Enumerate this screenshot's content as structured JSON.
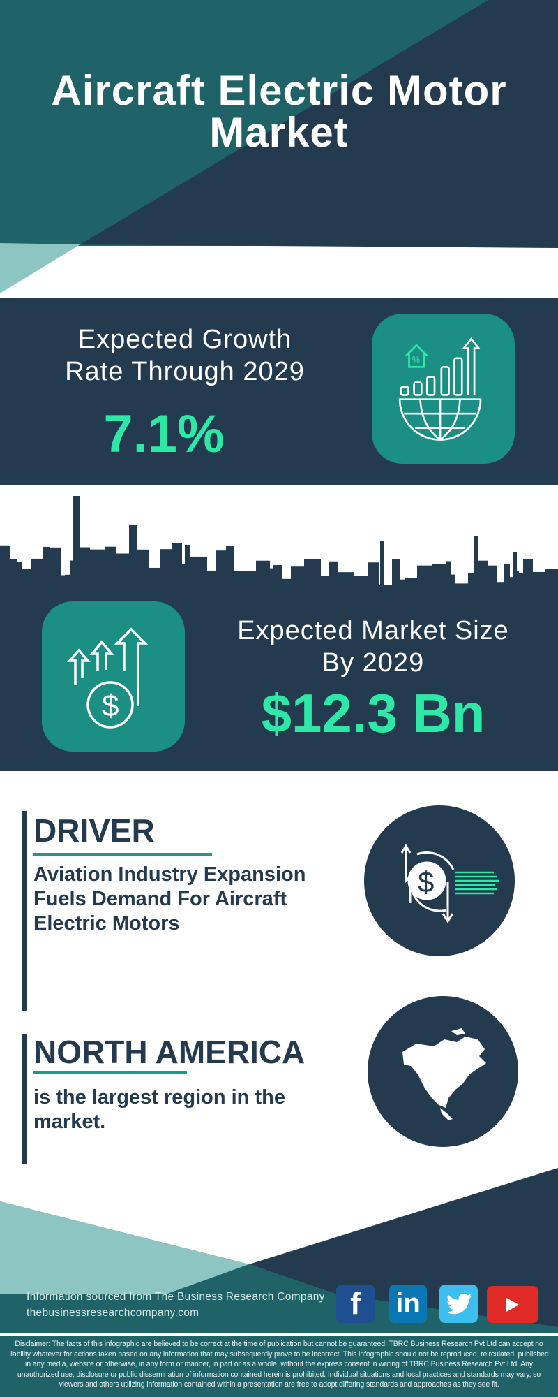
{
  "header": {
    "title_line1": "Aircraft Electric Motor",
    "title_line2": "Market"
  },
  "growth": {
    "label_line1": "Expected Growth",
    "label_line2": "Rate Through 2029",
    "value": "7.1%",
    "icon": "globe-growth-chart-icon"
  },
  "market_size": {
    "label_line1": "Expected Market Size",
    "label_line2": "By 2029",
    "value": "$12.3 Bn",
    "icon": "dollar-arrows-up-icon"
  },
  "driver": {
    "heading": "DRIVER",
    "text_lines": [
      "Aviation Industry Expansion",
      "Fuels Demand For Aircraft",
      "Electric Motors"
    ],
    "icon": "dollar-exchange-icon"
  },
  "region": {
    "heading": "NORTH AMERICA",
    "text_lines": [
      "is the largest region in the",
      "market."
    ],
    "icon": "north-america-map-icon"
  },
  "footer": {
    "source": "Information sourced from The Business Research Company",
    "url": "thebusinessresearchcompany.com",
    "social": [
      {
        "name": "facebook",
        "glyph": "f",
        "color": "#1d4f91"
      },
      {
        "name": "linkedin",
        "glyph": "in",
        "color": "#0a77b5"
      },
      {
        "name": "twitter",
        "glyph": "twitter-bird",
        "color": "#3cbfee"
      },
      {
        "name": "youtube",
        "glyph": "play",
        "color": "#e02a26"
      }
    ],
    "disclaimer": "Disclaimer: The facts of this infographic are believed to be correct at the time of publication but cannot be guaranteed. TBRC Business Research Pvt Ltd can accept no liability whatever for actions taken based on any information that may subsequently prove to be incorrect. This infographic should not be reproduced, reirculated, published in any media, website or otherwise, in any form or manner, in part or as a whole, without the express consent in writing of TBRC Business Research Pvt Ltd. Any unauthorized use, disclosure or public dissemination of information contained herein is prohibited. Individual situations and local practices and standards may vary, so viewers and others utilizing information contained within a presentation are free to adopt differing standards and approaches as they see fit."
  },
  "colors": {
    "navy": "#243a4f",
    "teal": "#1f6369",
    "light_teal": "#8cc5c2",
    "accent_green": "#2ee8a8",
    "icon_box": "#1b8f84"
  }
}
